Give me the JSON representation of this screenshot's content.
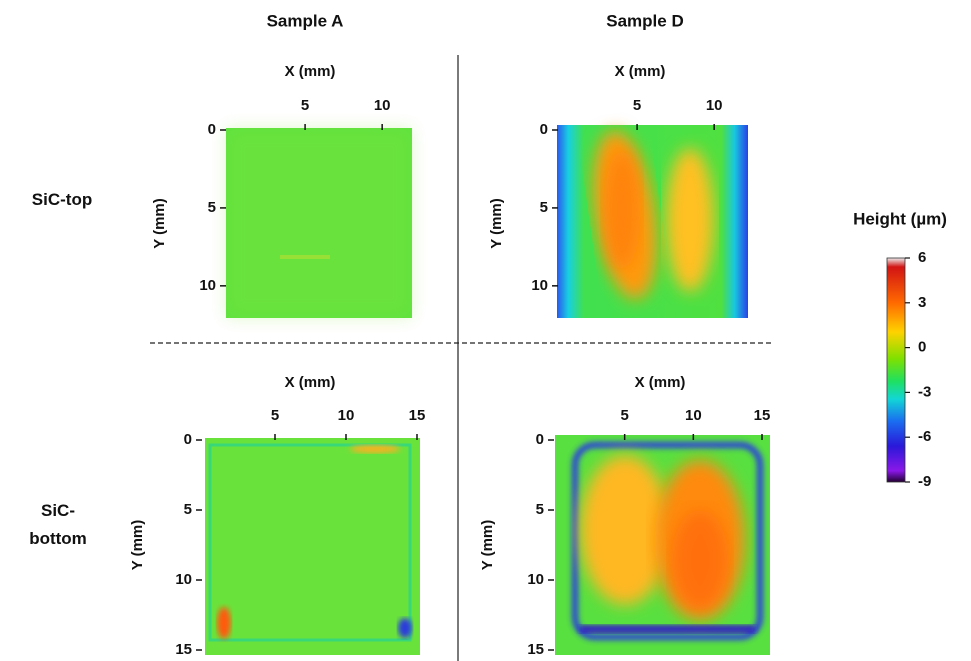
{
  "column_titles": [
    "Sample A",
    "Sample D"
  ],
  "row_labels": [
    "SiC-top",
    "SiC-\nbottom"
  ],
  "panels": [
    {
      "x_label": "X (mm)",
      "y_label": "Y (mm)",
      "xlim": [
        0,
        12
      ],
      "ylim": [
        0,
        12
      ],
      "xticks": [
        5,
        10
      ],
      "yticks": [
        0,
        5,
        10
      ]
    },
    {
      "x_label": "X (mm)",
      "y_label": "Y (mm)",
      "xlim": [
        0,
        12
      ],
      "ylim": [
        0,
        12
      ],
      "xticks": [
        5,
        10
      ],
      "yticks": [
        0,
        5,
        10
      ]
    },
    {
      "x_label": "X (mm)",
      "y_label": "Y (mm)",
      "xlim": [
        0,
        15
      ],
      "ylim": [
        0,
        15
      ],
      "xticks": [
        5,
        10,
        15
      ],
      "yticks": [
        0,
        5,
        10,
        15
      ]
    },
    {
      "x_label": "X (mm)",
      "y_label": "Y (mm)",
      "xlim": [
        0,
        15
      ],
      "ylim": [
        0,
        15
      ],
      "xticks": [
        5,
        10,
        15
      ],
      "yticks": [
        0,
        5,
        10,
        15
      ]
    }
  ],
  "colorbar": {
    "title": "Height (µm)",
    "range": [
      -9,
      6
    ],
    "ticks": [
      6,
      3,
      0,
      -3,
      -6,
      -9
    ]
  }
}
